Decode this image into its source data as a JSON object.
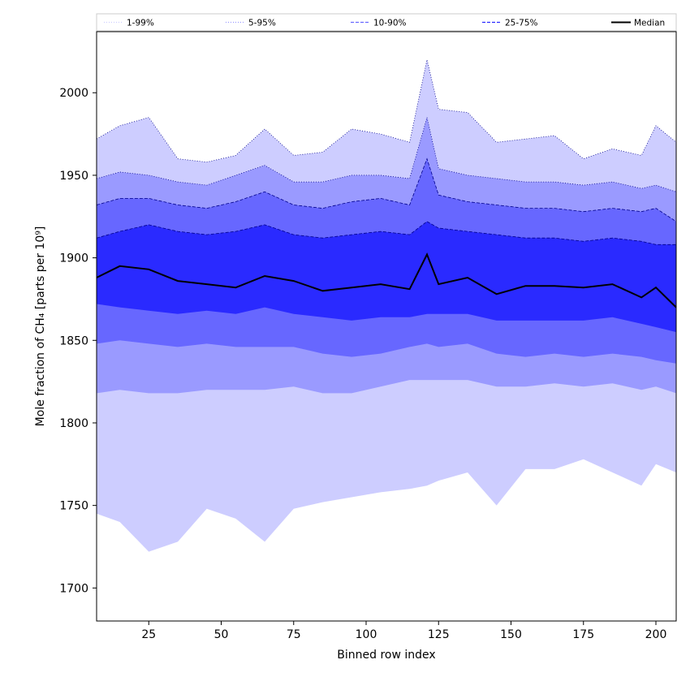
{
  "chart_data": {
    "type": "area",
    "xlabel": "Binned row index",
    "ylabel": "Mole fraction of CH₄ [parts per 10⁹]",
    "xlim": [
      7,
      207
    ],
    "ylim": [
      1680,
      2037
    ],
    "x_ticks": [
      25,
      50,
      75,
      100,
      125,
      150,
      175,
      200
    ],
    "y_ticks": [
      1700,
      1750,
      1800,
      1850,
      1900,
      1950,
      2000
    ],
    "grid": false,
    "legend_position": "top",
    "colors": {
      "band_1_99": "#cdcdff",
      "band_5_95": "#9a9aff",
      "band_10_90": "#6767ff",
      "band_25_75": "#2a2aff",
      "edge": "#00008b",
      "median": "#000000"
    },
    "legend": [
      {
        "label": "1-99%",
        "style": "dotted",
        "color": "#cdcdff"
      },
      {
        "label": "5-95%",
        "style": "dotted",
        "color": "#9a9aff"
      },
      {
        "label": "10-90%",
        "style": "dashed",
        "color": "#6767ff"
      },
      {
        "label": "25-75%",
        "style": "dashed",
        "color": "#2a2aff"
      },
      {
        "label": "Median",
        "style": "solid",
        "color": "#000000"
      }
    ],
    "x": [
      7,
      15,
      25,
      35,
      45,
      55,
      65,
      75,
      85,
      95,
      105,
      115,
      121,
      125,
      135,
      145,
      155,
      165,
      175,
      185,
      195,
      200,
      207
    ],
    "series": [
      {
        "name": "Median",
        "values": [
          1888,
          1895,
          1893,
          1886,
          1884,
          1882,
          1889,
          1886,
          1880,
          1882,
          1884,
          1881,
          1902,
          1884,
          1888,
          1878,
          1883,
          1883,
          1882,
          1884,
          1876,
          1882,
          1870
        ]
      },
      {
        "name": "25-75%",
        "lower": [
          1872,
          1870,
          1868,
          1866,
          1868,
          1866,
          1870,
          1866,
          1864,
          1862,
          1864,
          1864,
          1866,
          1866,
          1866,
          1862,
          1862,
          1862,
          1862,
          1864,
          1860,
          1858,
          1855
        ],
        "upper": [
          1912,
          1916,
          1920,
          1916,
          1914,
          1916,
          1920,
          1914,
          1912,
          1914,
          1916,
          1914,
          1922,
          1918,
          1916,
          1914,
          1912,
          1912,
          1910,
          1912,
          1910,
          1908,
          1908
        ]
      },
      {
        "name": "10-90%",
        "lower": [
          1848,
          1850,
          1848,
          1846,
          1848,
          1846,
          1846,
          1846,
          1842,
          1840,
          1842,
          1846,
          1848,
          1846,
          1848,
          1842,
          1840,
          1842,
          1840,
          1842,
          1840,
          1838,
          1836
        ],
        "upper": [
          1932,
          1936,
          1936,
          1932,
          1930,
          1934,
          1940,
          1932,
          1930,
          1934,
          1936,
          1932,
          1960,
          1938,
          1934,
          1932,
          1930,
          1930,
          1928,
          1930,
          1928,
          1930,
          1922
        ]
      },
      {
        "name": "5-95%",
        "lower": [
          1818,
          1820,
          1818,
          1818,
          1820,
          1820,
          1820,
          1822,
          1818,
          1818,
          1822,
          1826,
          1826,
          1826,
          1826,
          1822,
          1822,
          1824,
          1822,
          1824,
          1820,
          1822,
          1818
        ],
        "upper": [
          1948,
          1952,
          1950,
          1946,
          1944,
          1950,
          1956,
          1946,
          1946,
          1950,
          1950,
          1948,
          1985,
          1954,
          1950,
          1948,
          1946,
          1946,
          1944,
          1946,
          1942,
          1944,
          1940
        ]
      },
      {
        "name": "1-99%",
        "lower": [
          1745,
          1740,
          1722,
          1728,
          1748,
          1742,
          1728,
          1748,
          1752,
          1755,
          1758,
          1760,
          1762,
          1765,
          1770,
          1750,
          1772,
          1772,
          1778,
          1770,
          1762,
          1775,
          1770
        ],
        "upper": [
          1972,
          1980,
          1985,
          1960,
          1958,
          1962,
          1978,
          1962,
          1964,
          1978,
          1975,
          1970,
          2020,
          1990,
          1988,
          1970,
          1972,
          1974,
          1960,
          1966,
          1962,
          1980,
          1970
        ]
      }
    ]
  }
}
